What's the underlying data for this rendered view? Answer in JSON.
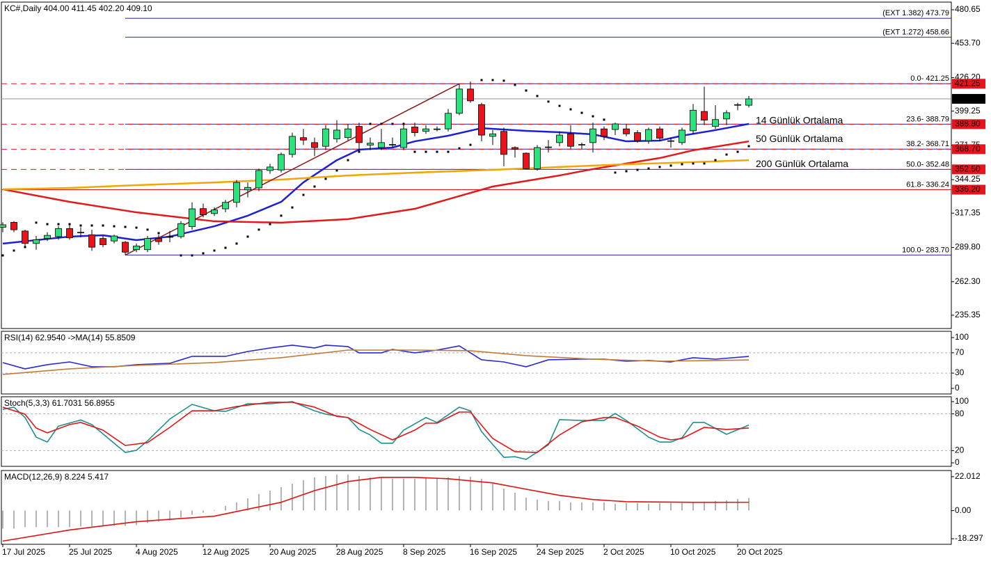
{
  "chart_data": [
    {
      "type": "candlestick",
      "title": "KC#,Daily  404.00 411.45 402.20 409.10",
      "categories": [
        "17 Jul 2025",
        null,
        null,
        null,
        null,
        null,
        "25 Jul 2025",
        null,
        null,
        null,
        null,
        null,
        "4 Aug 2025",
        null,
        null,
        null,
        null,
        null,
        "12 Aug 2025",
        null,
        null,
        null,
        null,
        null,
        "20 Aug 2025",
        null,
        null,
        null,
        null,
        null,
        "28 Aug 2025",
        null,
        null,
        null,
        null,
        null,
        "8 Sep 2025",
        null,
        null,
        null,
        null,
        null,
        "16 Sep 2025",
        null,
        null,
        null,
        null,
        null,
        "24 Sep 2025",
        null,
        null,
        null,
        null,
        null,
        "2 Oct 2025",
        null,
        null,
        null,
        null,
        null,
        "10 Oct 2025",
        null,
        null,
        null,
        null,
        null,
        "20 Oct 2025",
        null
      ],
      "open": [
        306,
        310,
        303,
        293,
        297,
        298.5,
        305,
        301.5,
        300,
        297,
        295,
        294,
        288,
        288,
        297,
        298,
        298.5,
        306.5,
        321,
        317,
        320.8,
        326,
        336,
        337.6,
        351.6,
        352,
        364.5,
        378,
        374,
        371,
        377,
        378,
        387,
        372,
        370,
        372,
        370,
        386.5,
        383,
        384.5,
        385,
        397.5,
        417,
        404.5,
        379,
        383,
        370,
        365.5,
        353,
        370,
        374,
        381,
        372,
        374,
        385,
        384.5,
        385,
        382,
        375.5,
        385,
        375,
        374,
        383.5,
        399,
        387,
        393,
        404,
        404
      ],
      "high": [
        310,
        311,
        304,
        299,
        302,
        307,
        309,
        306,
        304,
        299,
        300,
        295,
        293,
        299,
        300,
        303,
        311,
        326,
        325,
        322,
        328,
        344,
        342,
        353,
        357,
        366,
        382,
        385,
        378,
        388,
        392,
        389,
        390,
        378,
        385,
        378,
        390,
        390,
        388,
        387,
        401,
        421.25,
        423,
        406,
        384,
        386,
        371,
        366,
        372,
        376,
        383,
        388,
        374,
        390,
        387,
        390,
        389,
        384,
        386,
        387,
        378,
        386,
        405,
        419,
        404,
        400,
        406,
        411.45
      ],
      "low": [
        302,
        302,
        290,
        288,
        295,
        296,
        296,
        298,
        287,
        290,
        293,
        283.7,
        286,
        286,
        292,
        294,
        297,
        304,
        314,
        315,
        318,
        322,
        330,
        335,
        349,
        350,
        362,
        372,
        363,
        368,
        374,
        376,
        366,
        368,
        368,
        370,
        368,
        379,
        381,
        383,
        383,
        396,
        406,
        375,
        372,
        355,
        362,
        352.5,
        351.5,
        366,
        371,
        369,
        369,
        366,
        376,
        380,
        379,
        374,
        373,
        375,
        370,
        372,
        381,
        388,
        385,
        388,
        400,
        402.2
      ],
      "close": [
        308,
        304,
        293,
        296,
        299.5,
        305,
        297.5,
        302,
        290,
        292,
        299,
        286,
        291,
        297,
        294.5,
        298.5,
        309,
        320.8,
        316,
        320,
        326,
        342,
        338,
        351.6,
        354.4,
        364.5,
        379,
        376,
        370,
        385,
        384,
        385,
        374,
        373.5,
        374,
        372.5,
        385,
        382,
        385,
        385,
        397.5,
        417,
        407.5,
        380,
        381,
        364.5,
        368.5,
        353,
        370,
        370.5,
        380,
        371,
        372.5,
        385,
        379,
        389,
        381,
        375.5,
        384.5,
        377.5,
        375.5,
        384,
        400,
        392,
        392.5,
        398,
        404.5,
        409.1
      ],
      "up_color": "#2fe07f",
      "down_color": "#e8141b",
      "series": [
        {
          "name": "14 Günlük Ortalama",
          "color": "#1c1fd8",
          "x": [
            0,
            6,
            9,
            12,
            15,
            19,
            22,
            25,
            27,
            30,
            32,
            35,
            37,
            40,
            43,
            47,
            50,
            53,
            56,
            59,
            61,
            64,
            67
          ],
          "values": [
            292.9,
            298.5,
            299.6,
            295.7,
            298.5,
            306.8,
            315.3,
            326.4,
            342.1,
            359.9,
            368.3,
            370.0,
            375.0,
            379.5,
            385.6,
            383.4,
            382.3,
            380.6,
            375.0,
            375.6,
            379.5,
            384.0,
            389.0
          ]
        },
        {
          "name": "50 Günlük Ortalama",
          "color": "#e31919",
          "x": [
            0,
            6,
            12,
            19,
            25,
            31,
            37,
            44,
            47,
            50,
            53,
            56,
            59,
            62,
            67
          ],
          "values": [
            336.5,
            326.4,
            318.0,
            310.8,
            309.7,
            312.5,
            320.8,
            338.7,
            343.2,
            347.6,
            352.7,
            357.2,
            361.6,
            367.8,
            375.0
          ]
        },
        {
          "name": "200 Günlük Ortalama",
          "color": "#f5a500",
          "x": [
            0,
            6,
            12,
            19,
            25,
            31,
            37,
            44,
            50,
            56,
            62,
            67
          ],
          "values": [
            336.5,
            337.6,
            339.8,
            342.0,
            344.3,
            347.6,
            349.9,
            352.1,
            354.4,
            356.6,
            358.3,
            359.9
          ]
        }
      ],
      "sar": {
        "color": "#000000",
        "values": [
          283.4,
          287.3,
          290.1,
          309.7,
          308.5,
          308.5,
          308.5,
          307.4,
          307.4,
          307.4,
          306.8,
          306.3,
          305.7,
          304.1,
          301.3,
          298.5,
          283.4,
          283.4,
          285.1,
          287.3,
          289.5,
          292.9,
          298.5,
          304.1,
          308.5,
          315.3,
          321.9,
          332.0,
          338.7,
          344.9,
          351.6,
          359.9,
          366.6,
          389.0,
          389.0,
          389.0,
          389.0,
          366.6,
          366.6,
          366.6,
          366.6,
          369.4,
          372.2,
          424.2,
          424.2,
          423.7,
          420.3,
          415.8,
          411.4,
          406.9,
          403.5,
          400.7,
          397.9,
          395.1,
          392.4,
          349.9,
          351.0,
          352.1,
          353.2,
          354.4,
          355.5,
          356.6,
          357.2,
          357.2,
          359.9,
          364.4,
          366.6,
          371.1
        ]
      },
      "trendline": {
        "color": "#8b1a1a",
        "from": {
          "index": 11,
          "value": 283.7
        },
        "to": {
          "index": 41,
          "value": 421.25
        }
      },
      "fib_levels": {
        "color": "#2626b4",
        "levels": [
          {
            "value": 473.79,
            "label": "(EXT 1.382)  473.79"
          },
          {
            "value": 458.66,
            "label": "(EXT 1.272)  458.66"
          },
          {
            "value": 421.25,
            "label": "0.0- 421.25"
          },
          {
            "value": 388.79,
            "label": "23.6- 388.79"
          },
          {
            "value": 368.71,
            "label": "38.2- 368.71"
          },
          {
            "value": 352.48,
            "label": "50.0- 352.48"
          },
          {
            "value": 336.24,
            "label": "61.8- 336.24"
          },
          {
            "value": 283.7,
            "label": "100.0- 283.70"
          }
        ]
      },
      "price_lines": [
        {
          "value": 421.25,
          "color": "#e8141b",
          "dashed": true
        },
        {
          "value": 409.1,
          "label": "409.10",
          "color": "#000000",
          "dashed": false
        },
        {
          "value": 388.8,
          "label": "388.80",
          "color": "#e8141b",
          "dashed": true
        },
        {
          "value": 368.7,
          "label": "368.70",
          "color": "#e8141b",
          "dashed": true
        },
        {
          "value": 352.5,
          "label": "352.50",
          "color": "#e8141b",
          "dashed": true
        },
        {
          "value": 336.2,
          "label": "336.20",
          "color": "#e8141b",
          "dashed": false
        }
      ],
      "ylim": [
        224.7,
        486.8
      ],
      "yticks": [
        480.65,
        {
          "value": 453.7,
          "label": "453.70"
        },
        {
          "value": 426.2,
          "label": "426.20"
        },
        399.25,
        371.75,
        344.25,
        317.35,
        {
          "value": 289.8,
          "label": "289.80"
        },
        {
          "value": 262.3,
          "label": "262.30"
        },
        235.35
      ]
    },
    {
      "type": "line",
      "title": "RSI(14) 62.9540  ->MA(14) 55.8509",
      "series": [
        {
          "color": "#2a2ad4",
          "x": [
            0,
            2,
            4,
            6,
            8,
            10,
            12,
            15,
            17,
            20,
            22,
            24,
            26,
            28,
            29,
            31,
            32,
            34,
            35,
            37,
            39,
            41,
            43,
            45,
            47,
            49,
            52,
            54,
            56,
            58,
            60,
            62,
            64,
            67
          ],
          "values": [
            50.7,
            38.4,
            46.6,
            52,
            42.5,
            42.5,
            46.6,
            49.3,
            63,
            63,
            72.6,
            79.5,
            85,
            79.5,
            85,
            82.2,
            69.9,
            69.9,
            76.7,
            69.9,
            75.3,
            83.6,
            56.2,
            52,
            42.5,
            56.2,
            57.5,
            57.5,
            53.4,
            54.8,
            52,
            60.3,
            57.5,
            62.954
          ]
        },
        {
          "color": "#c27a35",
          "x": [
            0,
            6,
            12,
            19,
            25,
            31,
            37,
            42,
            47,
            53,
            59,
            67
          ],
          "values": [
            27.4,
            38.4,
            45.2,
            50.7,
            60.3,
            75.3,
            75.3,
            74,
            64.4,
            57.5,
            53.4,
            55.8509
          ]
        }
      ],
      "levels": [
        70,
        30
      ],
      "ylim": [
        -11,
        112.3
      ],
      "yticks": [
        100,
        70,
        30,
        0
      ]
    },
    {
      "type": "line",
      "title": "Stoch(5,3,3) 61.7031 56.8955",
      "series": [
        {
          "color": "#1e8f8f",
          "x": [
            0,
            1,
            2,
            3,
            4,
            5,
            7,
            8,
            10,
            11,
            12,
            13,
            15,
            17,
            19,
            20,
            22,
            24,
            26,
            28,
            29,
            31,
            32,
            33,
            34,
            35,
            36,
            38,
            39,
            41,
            42,
            43,
            45,
            46,
            47,
            49,
            50,
            52,
            54,
            55,
            56,
            58,
            59,
            60,
            61,
            62,
            63,
            65,
            67
          ],
          "values": [
            87.5,
            91,
            74,
            42,
            34,
            60,
            70,
            62.5,
            32,
            17,
            20.5,
            36,
            71.6,
            95.5,
            85,
            84,
            96.6,
            96.6,
            100,
            85,
            79.5,
            74,
            54.5,
            45.5,
            32,
            32,
            53.4,
            74,
            66,
            91,
            85,
            51,
            9,
            10,
            5.7,
            29.5,
            70.5,
            69.3,
            69.3,
            80.7,
            69.3,
            42,
            34,
            34,
            41,
            66,
            66,
            46.6,
            61.7031
          ]
        },
        {
          "color": "#e31515",
          "x": [
            0,
            2,
            3,
            4,
            6,
            7,
            9,
            11,
            13,
            15,
            17,
            19,
            21,
            24,
            26,
            28,
            30,
            31,
            33,
            35,
            37,
            38,
            39,
            41,
            42,
            44,
            46,
            48,
            50,
            52,
            54,
            55,
            57,
            59,
            60,
            61,
            63,
            65,
            67
          ],
          "values": [
            91,
            79.5,
            56.8,
            49,
            62.5,
            66,
            53.4,
            28.4,
            33,
            58,
            85,
            85,
            92,
            99,
            99,
            91,
            76,
            74,
            54.5,
            37.5,
            53.4,
            64.8,
            64.8,
            83,
            83,
            39.8,
            18.2,
            17,
            45.5,
            67,
            74,
            74,
            60,
            42,
            37.5,
            39.8,
            58,
            54.5,
            56.8955
          ]
        }
      ],
      "levels": [
        80,
        20
      ],
      "ylim": [
        -5.7,
        108
      ],
      "yticks": [
        100,
        80,
        20,
        0
      ]
    },
    {
      "type": "macd",
      "title": "MACD(12,26,9) 8.224 5.417",
      "histogram": {
        "color": "#b4b4b4",
        "values": [
          -11.7,
          -11.7,
          -10.8,
          -10.8,
          -10.8,
          -10.8,
          -10.8,
          -10.3,
          -10.3,
          -10.3,
          -9.9,
          -9.9,
          -9.4,
          -8.1,
          -7.2,
          -6.3,
          -4.5,
          -2.7,
          -1.3,
          0.4,
          3.1,
          5.4,
          8,
          10.8,
          13,
          15.3,
          17.5,
          19.8,
          21.6,
          22.5,
          23.4,
          23.4,
          22.5,
          21.6,
          21.6,
          20.7,
          20.7,
          20.7,
          21.6,
          21.2,
          21.6,
          22.5,
          22,
          20.7,
          17.5,
          14.4,
          11.7,
          8.5,
          7.2,
          6.3,
          6.3,
          5.4,
          5.4,
          5.4,
          5.4,
          4.5,
          4.9,
          4.9,
          4.5,
          4.9,
          4.9,
          4.9,
          5.4,
          5.8,
          6.3,
          6.7,
          7.6,
          8.224
        ]
      },
      "series": [
        {
          "color": "#e01010",
          "x": [
            0,
            6,
            12,
            19,
            25,
            28,
            31,
            34,
            37,
            40,
            44,
            47,
            50,
            53,
            56,
            62,
            67
          ],
          "values": [
            -19.8,
            -12.6,
            -7.2,
            -3.6,
            5.4,
            13,
            18.9,
            21.6,
            21.6,
            20.7,
            18,
            13.9,
            9.9,
            7.2,
            5.8,
            5.4,
            5.417
          ]
        }
      ],
      "ylim": [
        -21.89,
        26.05
      ],
      "yticks": [
        22.012,
        {
          "value": 0,
          "label": "0.00"
        },
        -18.297
      ]
    }
  ]
}
